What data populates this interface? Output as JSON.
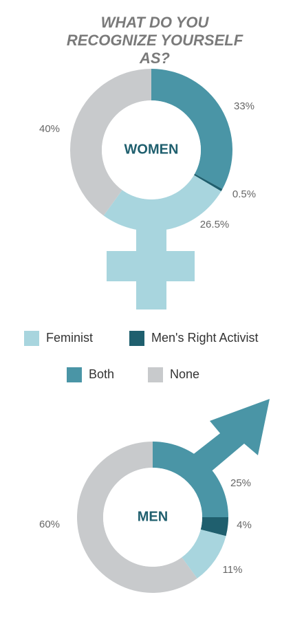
{
  "title": "WHAT DO YOU RECOGNIZE YOURSELF AS?",
  "chart_data": [
    {
      "type": "pie",
      "center_label": "WOMEN",
      "categories": [
        "Both",
        "Men's Right Activist",
        "Feminist",
        "None"
      ],
      "values": [
        33,
        0.5,
        26.5,
        40
      ],
      "value_labels": [
        "33%",
        "0.5%",
        "26.5%",
        "40%"
      ],
      "colors": [
        "#4a95a6",
        "#1f5f6e",
        "#a8d5de",
        "#c8cacc"
      ]
    },
    {
      "type": "pie",
      "center_label": "MEN",
      "categories": [
        "Both",
        "Men's Right Activist",
        "Feminist",
        "None"
      ],
      "values": [
        25,
        4,
        11,
        60
      ],
      "value_labels": [
        "25%",
        "4%",
        "11%",
        "60%"
      ],
      "colors": [
        "#4a95a6",
        "#1f5f6e",
        "#a8d5de",
        "#c8cacc"
      ]
    }
  ]
}
